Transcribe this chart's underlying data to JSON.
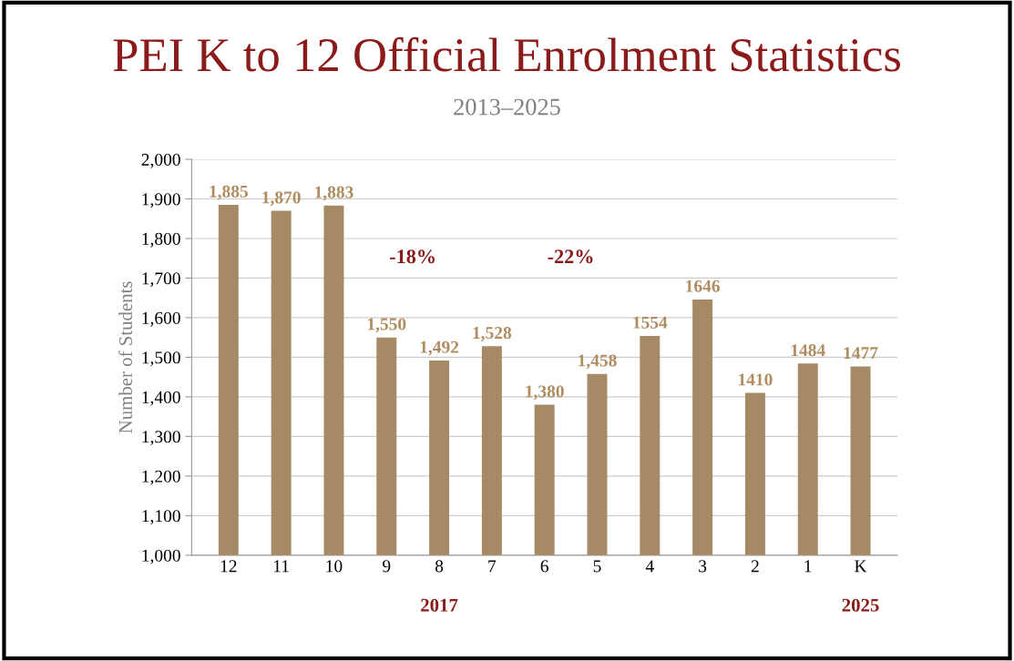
{
  "chart_data": {
    "type": "bar",
    "title": "PEI K to 12 Official Enrolment Statistics",
    "subtitle": "2013–2025",
    "ylabel": "Number of Students",
    "categories": [
      "12",
      "11",
      "10",
      "9",
      "8",
      "7",
      "6",
      "5",
      "4",
      "3",
      "2",
      "1",
      "K"
    ],
    "values": [
      1885,
      1870,
      1883,
      1550,
      1492,
      1528,
      1380,
      1458,
      1554,
      1646,
      1410,
      1484,
      1477
    ],
    "value_labels": [
      "1,885",
      "1,870",
      "1,883",
      "1,550",
      "1,492",
      "1,528",
      "1,380",
      "1,458",
      "1554",
      "1646",
      "1410",
      "1484",
      "1477"
    ],
    "color": "#a68a66",
    "ylim": [
      1000,
      2000
    ],
    "yticks": [
      {
        "value": 1000,
        "label": "1,000"
      },
      {
        "value": 1100,
        "label": "1,100"
      },
      {
        "value": 1200,
        "label": "1,200"
      },
      {
        "value": 1300,
        "label": "1,300"
      },
      {
        "value": 1400,
        "label": "1,400"
      },
      {
        "value": 1500,
        "label": "1,500"
      },
      {
        "value": 1600,
        "label": "1,600"
      },
      {
        "value": 1700,
        "label": "1,700"
      },
      {
        "value": 1800,
        "label": "1,800"
      },
      {
        "value": 1900,
        "label": "1,900"
      },
      {
        "value": 2000,
        "label": "2,000"
      }
    ],
    "grid": "y",
    "annotations": [
      "-18%",
      "-22%",
      "2017",
      "2025"
    ]
  }
}
